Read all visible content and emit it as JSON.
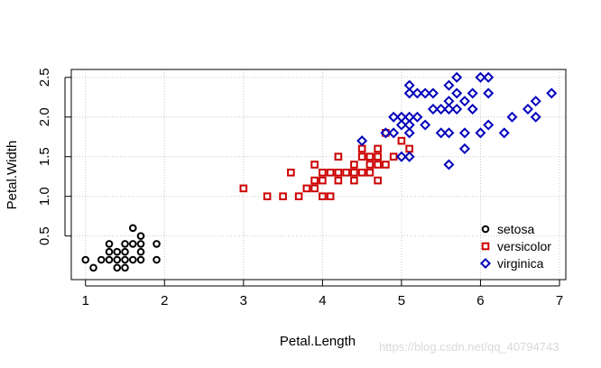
{
  "chart_data": {
    "type": "scatter",
    "xlabel": "Petal.Length",
    "ylabel": "Petal.Width",
    "xlim": [
      0.82,
      7.08
    ],
    "ylim": [
      -0.05,
      2.6
    ],
    "xticks": [
      1,
      2,
      3,
      4,
      5,
      6,
      7
    ],
    "yticks": [
      0.5,
      1.0,
      1.5,
      2.0,
      2.5
    ],
    "ytick_labels": [
      "0.5",
      "1.0",
      "1.5",
      "2.0",
      "2.5"
    ],
    "grid": true,
    "legend_position": "bottom-right",
    "series": [
      {
        "name": "setosa",
        "color": "#000000",
        "marker": "circle",
        "points": [
          [
            1.0,
            0.2
          ],
          [
            1.1,
            0.1
          ],
          [
            1.2,
            0.2
          ],
          [
            1.3,
            0.2
          ],
          [
            1.3,
            0.3
          ],
          [
            1.3,
            0.4
          ],
          [
            1.4,
            0.1
          ],
          [
            1.4,
            0.2
          ],
          [
            1.4,
            0.3
          ],
          [
            1.5,
            0.1
          ],
          [
            1.5,
            0.2
          ],
          [
            1.5,
            0.3
          ],
          [
            1.5,
            0.4
          ],
          [
            1.6,
            0.2
          ],
          [
            1.6,
            0.4
          ],
          [
            1.6,
            0.6
          ],
          [
            1.7,
            0.2
          ],
          [
            1.7,
            0.3
          ],
          [
            1.7,
            0.4
          ],
          [
            1.7,
            0.5
          ],
          [
            1.9,
            0.2
          ],
          [
            1.9,
            0.4
          ]
        ]
      },
      {
        "name": "versicolor",
        "color": "#cc0000",
        "marker": "square",
        "points": [
          [
            3.0,
            1.1
          ],
          [
            3.3,
            1.0
          ],
          [
            3.5,
            1.0
          ],
          [
            3.6,
            1.3
          ],
          [
            3.7,
            1.0
          ],
          [
            3.8,
            1.1
          ],
          [
            3.9,
            1.1
          ],
          [
            3.9,
            1.2
          ],
          [
            3.9,
            1.4
          ],
          [
            4.0,
            1.0
          ],
          [
            4.0,
            1.2
          ],
          [
            4.0,
            1.3
          ],
          [
            4.1,
            1.0
          ],
          [
            4.1,
            1.3
          ],
          [
            4.2,
            1.2
          ],
          [
            4.2,
            1.3
          ],
          [
            4.2,
            1.5
          ],
          [
            4.3,
            1.3
          ],
          [
            4.4,
            1.2
          ],
          [
            4.4,
            1.3
          ],
          [
            4.4,
            1.4
          ],
          [
            4.5,
            1.3
          ],
          [
            4.5,
            1.5
          ],
          [
            4.5,
            1.6
          ],
          [
            4.6,
            1.3
          ],
          [
            4.6,
            1.4
          ],
          [
            4.6,
            1.5
          ],
          [
            4.7,
            1.2
          ],
          [
            4.7,
            1.4
          ],
          [
            4.7,
            1.5
          ],
          [
            4.7,
            1.6
          ],
          [
            4.8,
            1.4
          ],
          [
            4.8,
            1.8
          ],
          [
            4.9,
            1.5
          ],
          [
            5.0,
            1.7
          ],
          [
            5.1,
            1.6
          ]
        ]
      },
      {
        "name": "virginica",
        "color": "#0000bb",
        "marker": "diamond",
        "points": [
          [
            4.5,
            1.7
          ],
          [
            4.8,
            1.8
          ],
          [
            4.9,
            1.8
          ],
          [
            4.9,
            2.0
          ],
          [
            5.0,
            1.5
          ],
          [
            5.0,
            1.9
          ],
          [
            5.0,
            2.0
          ],
          [
            5.1,
            1.5
          ],
          [
            5.1,
            1.8
          ],
          [
            5.1,
            1.9
          ],
          [
            5.1,
            2.0
          ],
          [
            5.1,
            2.3
          ],
          [
            5.1,
            2.4
          ],
          [
            5.2,
            2.0
          ],
          [
            5.2,
            2.3
          ],
          [
            5.3,
            1.9
          ],
          [
            5.3,
            2.3
          ],
          [
            5.4,
            2.1
          ],
          [
            5.4,
            2.3
          ],
          [
            5.5,
            1.8
          ],
          [
            5.5,
            2.1
          ],
          [
            5.6,
            1.4
          ],
          [
            5.6,
            1.8
          ],
          [
            5.6,
            2.1
          ],
          [
            5.6,
            2.2
          ],
          [
            5.6,
            2.4
          ],
          [
            5.7,
            2.1
          ],
          [
            5.7,
            2.3
          ],
          [
            5.7,
            2.5
          ],
          [
            5.8,
            1.6
          ],
          [
            5.8,
            1.8
          ],
          [
            5.8,
            2.2
          ],
          [
            5.9,
            2.1
          ],
          [
            5.9,
            2.3
          ],
          [
            6.0,
            1.8
          ],
          [
            6.0,
            2.5
          ],
          [
            6.1,
            1.9
          ],
          [
            6.1,
            2.3
          ],
          [
            6.1,
            2.5
          ],
          [
            6.3,
            1.8
          ],
          [
            6.4,
            2.0
          ],
          [
            6.6,
            2.1
          ],
          [
            6.7,
            2.0
          ],
          [
            6.7,
            2.2
          ],
          [
            6.9,
            2.3
          ]
        ]
      }
    ]
  },
  "watermark": "https://blog.csdn.net/qq_40794743"
}
